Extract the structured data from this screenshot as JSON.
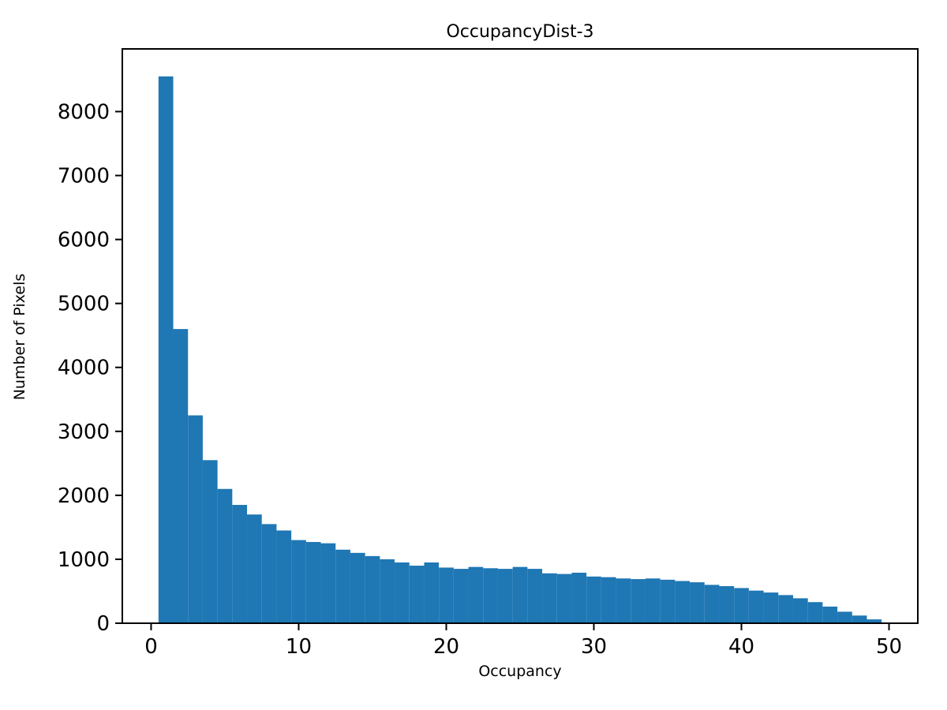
{
  "figure": {
    "title": "OccupancyDist-3",
    "xlabel": "Occupancy",
    "ylabel": "Number of Pixels"
  },
  "chart_data": {
    "type": "bar",
    "title": "OccupancyDist-3",
    "xlabel": "Occupancy",
    "ylabel": "Number of Pixels",
    "bar_color": "#1f77b4",
    "bin_start": 0.5,
    "bin_width": 1,
    "values": [
      8550,
      4600,
      3250,
      2550,
      2100,
      1850,
      1700,
      1550,
      1450,
      1300,
      1270,
      1250,
      1150,
      1100,
      1050,
      1000,
      950,
      900,
      950,
      870,
      850,
      880,
      860,
      850,
      880,
      850,
      780,
      770,
      790,
      730,
      720,
      700,
      690,
      700,
      680,
      660,
      640,
      600,
      580,
      550,
      510,
      480,
      440,
      390,
      330,
      260,
      180,
      120,
      60
    ],
    "xlim": [
      -1.95,
      51.95
    ],
    "ylim": [
      0,
      8980
    ],
    "xticks": [
      0,
      10,
      20,
      30,
      40,
      50
    ],
    "yticks": [
      0,
      1000,
      2000,
      3000,
      4000,
      5000,
      6000,
      7000,
      8000
    ],
    "grid": false,
    "legend": "none"
  }
}
